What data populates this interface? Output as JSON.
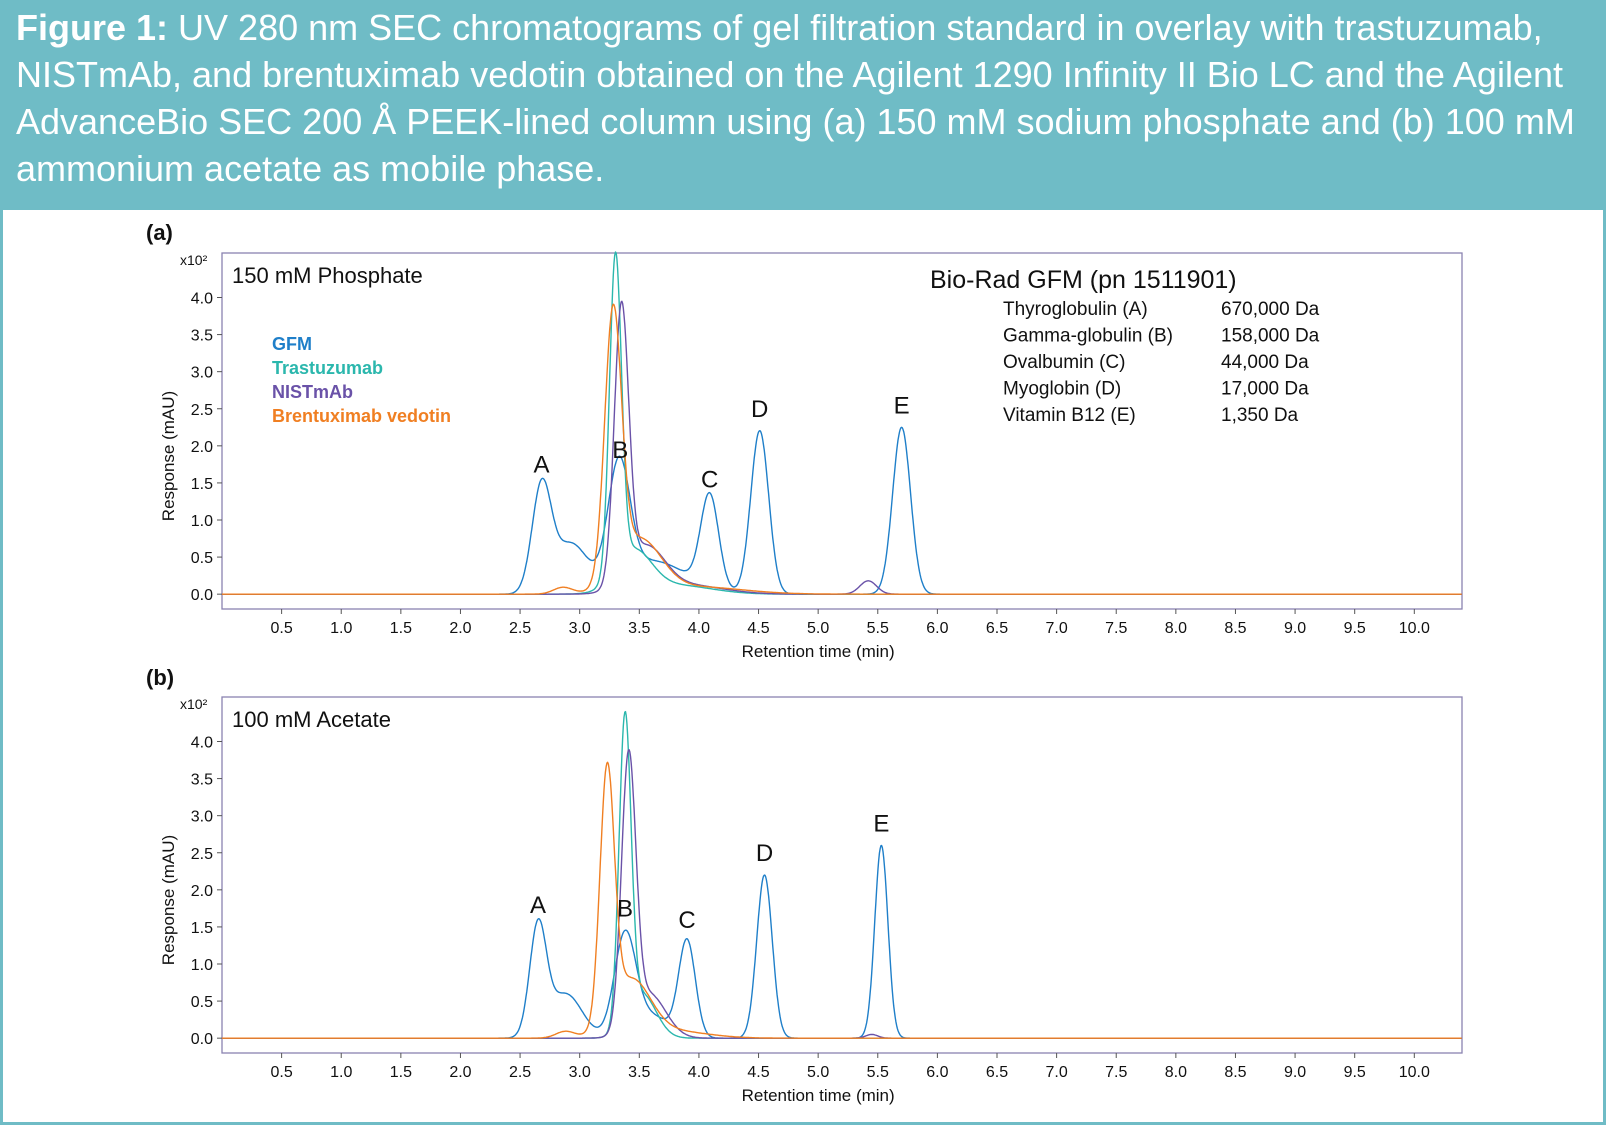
{
  "figure": {
    "label": "Figure 1:",
    "caption": "UV 280 nm SEC chromatograms of gel filtration standard in overlay with trastuzumab, NISTmAb, and brentuximab vedotin obtained on the Agilent 1290 Infinity II Bio LC and the Agilent AdvanceBio SEC 200 Å PEEK-lined column using (a) 150 mM sodium phosphate and (b) 100 mM ammonium acetate as mobile phase."
  },
  "colors": {
    "header": "#6fbcc6",
    "GFM": "#1f7fc9",
    "Trastuzumab": "#2bb7ad",
    "NISTmAb": "#6a52a8",
    "Brentuximab vedotin": "#f07f22"
  },
  "legend": [
    "GFM",
    "Trastuzumab",
    "NISTmAb",
    "Brentuximab vedotin"
  ],
  "standards": {
    "title": "Bio-Rad GFM (pn 1511901)",
    "items": [
      {
        "name": "Thyroglobulin (A)",
        "mass": "670,000 Da"
      },
      {
        "name": "Gamma-globulin (B)",
        "mass": "158,000 Da"
      },
      {
        "name": "Ovalbumin (C)",
        "mass": "44,000 Da"
      },
      {
        "name": "Myoglobin (D)",
        "mass": "17,000 Da"
      },
      {
        "name": "Vitamin B12 (E)",
        "mass": "1,350 Da"
      }
    ]
  },
  "chart_data": [
    {
      "type": "line",
      "panel": "(a)",
      "condition": "150 mM Phosphate",
      "xlabel": "Retention time (min)",
      "ylabel": "Response (mAU)",
      "y_multiplier": "x10²",
      "xlim": [
        0,
        10.4
      ],
      "ylim": [
        -0.2,
        4.6
      ],
      "xticks": [
        "0.5",
        "1.0",
        "1.5",
        "2.0",
        "2.5",
        "3.0",
        "3.5",
        "4.0",
        "4.5",
        "5.0",
        "5.5",
        "6.0",
        "6.5",
        "7.0",
        "7.5",
        "8.0",
        "8.5",
        "9.0",
        "9.5",
        "10.0"
      ],
      "yticks": [
        "0.0",
        "0.5",
        "1.0",
        "1.5",
        "2.0",
        "2.5",
        "3.0",
        "3.5",
        "4.0"
      ],
      "peak_labels": [
        {
          "label": "A",
          "x": 2.68,
          "y": 1.45
        },
        {
          "label": "B",
          "x": 3.34,
          "y": 1.65
        },
        {
          "label": "C",
          "x": 4.09,
          "y": 1.25
        },
        {
          "label": "D",
          "x": 4.51,
          "y": 2.2
        },
        {
          "label": "E",
          "x": 5.7,
          "y": 2.25
        }
      ],
      "series": [
        {
          "name": "GFM",
          "peaks": [
            [
              2.68,
              1.4,
              0.08
            ],
            [
              2.92,
              0.65,
              0.14
            ],
            [
              3.33,
              1.55,
              0.09
            ],
            [
              3.6,
              0.45,
              0.3
            ],
            [
              4.09,
              1.25,
              0.075
            ],
            [
              4.51,
              2.2,
              0.075
            ],
            [
              5.7,
              2.25,
              0.075
            ]
          ]
        },
        {
          "name": "Trastuzumab",
          "peaks": [
            [
              3.3,
              4.25,
              0.05
            ],
            [
              3.45,
              0.55,
              0.15
            ],
            [
              3.8,
              0.12,
              0.3
            ]
          ]
        },
        {
          "name": "NISTmAb",
          "peaks": [
            [
              3.35,
              3.65,
              0.06
            ],
            [
              3.55,
              0.6,
              0.16
            ],
            [
              3.9,
              0.12,
              0.3
            ],
            [
              5.42,
              0.18,
              0.07
            ]
          ]
        },
        {
          "name": "Brentuximab vedotin",
          "peaks": [
            [
              2.86,
              0.09,
              0.08
            ],
            [
              3.28,
              3.55,
              0.07
            ],
            [
              3.5,
              0.7,
              0.18
            ],
            [
              3.95,
              0.1,
              0.4
            ]
          ]
        }
      ]
    },
    {
      "type": "line",
      "panel": "(b)",
      "condition": "100 mM Acetate",
      "xlabel": "Retention time (min)",
      "ylabel": "Response (mAU)",
      "y_multiplier": "x10²",
      "xlim": [
        0,
        10.4
      ],
      "ylim": [
        -0.2,
        4.6
      ],
      "xticks": [
        "0.5",
        "1.0",
        "1.5",
        "2.0",
        "2.5",
        "3.0",
        "3.5",
        "4.0",
        "4.5",
        "5.0",
        "5.5",
        "6.0",
        "6.5",
        "7.0",
        "7.5",
        "8.0",
        "8.5",
        "9.0",
        "9.5",
        "10.0"
      ],
      "yticks": [
        "0.0",
        "0.5",
        "1.0",
        "1.5",
        "2.0",
        "2.5",
        "3.0",
        "3.5",
        "4.0"
      ],
      "peak_labels": [
        {
          "label": "A",
          "x": 2.65,
          "y": 1.5
        },
        {
          "label": "B",
          "x": 3.38,
          "y": 1.45
        },
        {
          "label": "C",
          "x": 3.9,
          "y": 1.3
        },
        {
          "label": "D",
          "x": 4.55,
          "y": 2.2
        },
        {
          "label": "E",
          "x": 5.53,
          "y": 2.6
        }
      ],
      "series": [
        {
          "name": "GFM",
          "peaks": [
            [
              2.65,
              1.45,
              0.07
            ],
            [
              2.88,
              0.6,
              0.14
            ],
            [
              3.38,
              1.35,
              0.09
            ],
            [
              3.6,
              0.3,
              0.15
            ],
            [
              3.9,
              1.3,
              0.07
            ],
            [
              4.55,
              2.2,
              0.065
            ],
            [
              5.53,
              2.6,
              0.055
            ]
          ]
        },
        {
          "name": "Trastuzumab",
          "peaks": [
            [
              3.38,
              4.1,
              0.05
            ],
            [
              3.52,
              0.6,
              0.12
            ]
          ]
        },
        {
          "name": "NISTmAb",
          "peaks": [
            [
              3.41,
              3.6,
              0.06
            ],
            [
              3.58,
              0.6,
              0.14
            ],
            [
              5.45,
              0.05,
              0.05
            ]
          ]
        },
        {
          "name": "Brentuximab vedotin",
          "peaks": [
            [
              2.88,
              0.09,
              0.08
            ],
            [
              3.23,
              3.35,
              0.06
            ],
            [
              3.43,
              0.75,
              0.16
            ],
            [
              3.75,
              0.1,
              0.3
            ]
          ]
        }
      ]
    }
  ]
}
